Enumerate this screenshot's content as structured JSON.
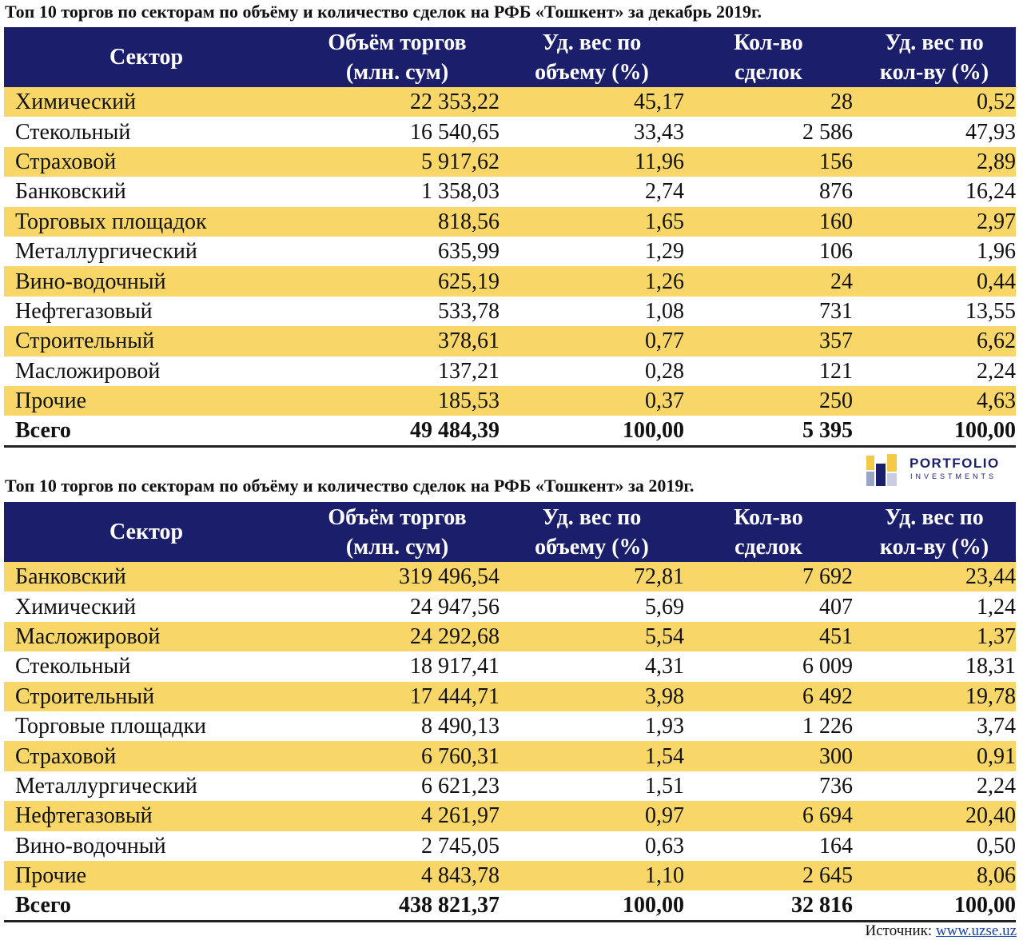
{
  "table1": {
    "title": "Топ 10 торгов по секторам по объёму и количество сделок на РФБ «Тошкент» за декабрь 2019г.",
    "headers": {
      "sector": "Сектор",
      "volume_1": "Объём торгов",
      "volume_2": "(млн. сум)",
      "share_vol_1": "Уд. вес по",
      "share_vol_2": "объему (%)",
      "deals_1": "Кол-во",
      "deals_2": "сделок",
      "share_deals_1": "Уд. вес по",
      "share_deals_2": "кол-ву (%)"
    },
    "rows": [
      [
        "Химический",
        "22 353,22",
        "45,17",
        "28",
        "0,52"
      ],
      [
        "Стекольный",
        "16 540,65",
        "33,43",
        "2 586",
        "47,93"
      ],
      [
        "Страховой",
        "5 917,62",
        "11,96",
        "156",
        "2,89"
      ],
      [
        "Банковский",
        "1 358,03",
        "2,74",
        "876",
        "16,24"
      ],
      [
        "Торговых площадок",
        "818,56",
        "1,65",
        "160",
        "2,97"
      ],
      [
        "Металлургический",
        "635,99",
        "1,29",
        "106",
        "1,96"
      ],
      [
        "Вино-водочный",
        "625,19",
        "1,26",
        "24",
        "0,44"
      ],
      [
        "Нефтегазовый",
        "533,78",
        "1,08",
        "731",
        "13,55"
      ],
      [
        "Строительный",
        "378,61",
        "0,77",
        "357",
        "6,62"
      ],
      [
        "Масложировой",
        "137,21",
        "0,28",
        "121",
        "2,24"
      ],
      [
        "Прочие",
        "185,53",
        "0,37",
        "250",
        "4,63"
      ]
    ],
    "total": [
      "Всего",
      "49 484,39",
      "100,00",
      "5 395",
      "100,00"
    ]
  },
  "table2": {
    "title": "Топ 10 торгов по секторам по объёму и количество сделок на РФБ «Тошкент» за 2019г.",
    "headers": {
      "sector": "Сектор",
      "volume_1": "Объём торгов",
      "volume_2": "(млн. сум)",
      "share_vol_1": "Уд. вес по",
      "share_vol_2": "объему (%)",
      "deals_1": "Кол-во",
      "deals_2": "сделок",
      "share_deals_1": "Уд. вес по",
      "share_deals_2": "кол-ву (%)"
    },
    "rows": [
      [
        "Банковский",
        "319 496,54",
        "72,81",
        "7 692",
        "23,44"
      ],
      [
        "Химический",
        "24 947,56",
        "5,69",
        "407",
        "1,24"
      ],
      [
        "Масложировой",
        "24 292,68",
        "5,54",
        "451",
        "1,37"
      ],
      [
        "Стекольный",
        "18 917,41",
        "4,31",
        "6 009",
        "18,31"
      ],
      [
        "Строительный",
        "17 444,71",
        "3,98",
        "6 492",
        "19,78"
      ],
      [
        "Торговые площадки",
        "8 490,13",
        "1,93",
        "1 226",
        "3,74"
      ],
      [
        "Страховой",
        "6 760,31",
        "1,54",
        "300",
        "0,91"
      ],
      [
        "Металлургический",
        "6 621,23",
        "1,51",
        "736",
        "2,24"
      ],
      [
        "Нефтегазовый",
        "4 261,97",
        "0,97",
        "6 694",
        "20,40"
      ],
      [
        "Вино-водочный",
        "2 745,05",
        "0,63",
        "164",
        "0,50"
      ],
      [
        "Прочие",
        "4 843,78",
        "1,10",
        "2 645",
        "8,06"
      ]
    ],
    "total": [
      "Всего",
      "438 821,37",
      "100,00",
      "32 816",
      "100,00"
    ]
  },
  "logo": {
    "name": "PORTFOLIO",
    "sub": "INVESTMENTS"
  },
  "source": {
    "label": "Источник:",
    "link": "www.uzse.uz"
  },
  "colors": {
    "header_bg": "#1b1f6b",
    "stripe": "#f8d768"
  }
}
